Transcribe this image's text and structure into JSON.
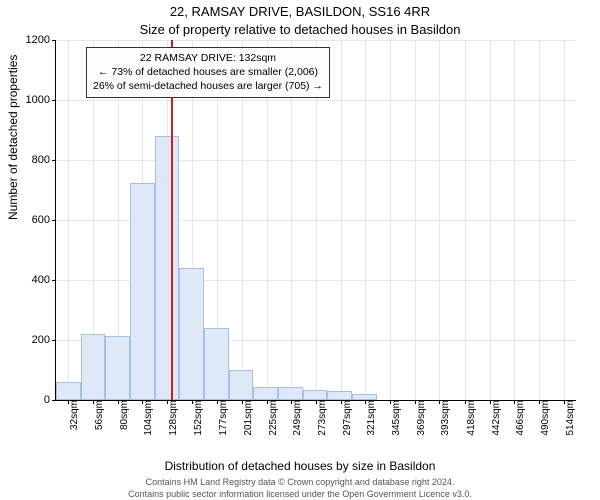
{
  "header": {
    "address": "22, RAMSAY DRIVE, BASILDON, SS16 4RR",
    "subtitle": "Size of property relative to detached houses in Basildon"
  },
  "axes": {
    "ylabel": "Number of detached properties",
    "xlabel": "Distribution of detached houses by size in Basildon",
    "ylim": [
      0,
      1200
    ],
    "ytick_step": 200,
    "yticks": [
      0,
      200,
      400,
      600,
      800,
      1000,
      1200
    ],
    "xlim": [
      20,
      526
    ],
    "xticks": [
      32,
      56,
      80,
      104,
      128,
      152,
      177,
      201,
      225,
      249,
      273,
      297,
      321,
      345,
      369,
      393,
      418,
      442,
      466,
      490,
      514
    ],
    "xtick_suffix": "sqm",
    "grid_color": "#e6e6ec",
    "tick_fontsize": 11
  },
  "chart": {
    "type": "histogram",
    "bin_width": 24,
    "bin_left_edges": [
      20,
      44,
      68,
      92,
      116,
      140,
      164,
      188,
      212,
      236,
      260,
      284,
      308
    ],
    "values": [
      60,
      220,
      215,
      725,
      880,
      440,
      240,
      100,
      45,
      45,
      35,
      30,
      20
    ],
    "bar_fill": "#dfe8f6",
    "bar_stroke": "#a9bfe1",
    "bar_stroke_width": 1,
    "background_color": "#ffffff"
  },
  "reference": {
    "x": 132,
    "color": "#d01e1e",
    "width": 2
  },
  "callout": {
    "line1": "22 RAMSAY DRIVE: 132sqm",
    "line2": "← 73% of detached houses are smaller (2,006)",
    "line3": "26% of semi-detached houses are larger (705) →",
    "border_color": "#323232",
    "bg": "#fdfdfd",
    "fontsize": 10.5
  },
  "footer": {
    "line1": "Contains HM Land Registry data © Crown copyright and database right 2024.",
    "line2": "Contains public sector information licensed under the Open Government Licence v3.0."
  }
}
